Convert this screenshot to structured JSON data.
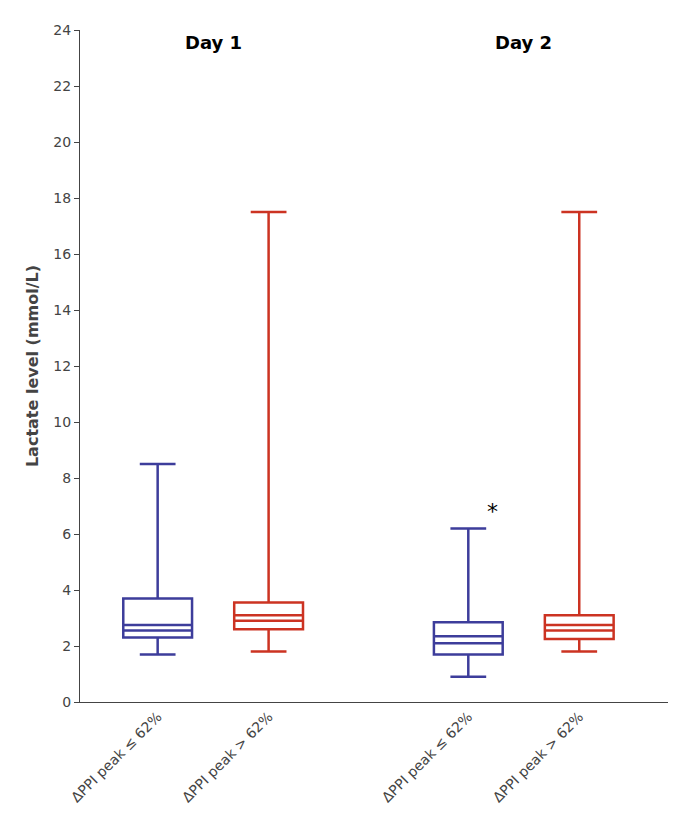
{
  "chart_data": {
    "type": "box",
    "ylabel": "Lactate level (mmol/L)",
    "ylim": [
      0,
      24
    ],
    "yticks": [
      0,
      2,
      4,
      6,
      8,
      10,
      12,
      14,
      16,
      18,
      20,
      22,
      24
    ],
    "grid": false,
    "groups": [
      {
        "label": "Day 1",
        "boxes": [
          {
            "label": "ΔPPI peak ≤ 62%",
            "color": "#3d3d9b",
            "whisker_low": 1.7,
            "q1": 2.3,
            "median": 2.75,
            "median2": 2.55,
            "q3": 3.7,
            "whisker_high": 8.5
          },
          {
            "label": "ΔPPI peak > 62%",
            "color": "#cc3322",
            "whisker_low": 1.8,
            "q1": 2.6,
            "median": 3.1,
            "median2": 2.9,
            "q3": 3.55,
            "whisker_high": 17.5
          }
        ]
      },
      {
        "label": "Day 2",
        "boxes": [
          {
            "label": "ΔPPI peak ≤ 62%",
            "color": "#3d3d9b",
            "whisker_low": 0.9,
            "q1": 1.7,
            "median": 2.35,
            "median2": 2.1,
            "q3": 2.85,
            "whisker_high": 6.2,
            "annotation": "*"
          },
          {
            "label": "ΔPPI peak > 62%",
            "color": "#cc3322",
            "whisker_low": 1.8,
            "q1": 2.25,
            "median": 2.75,
            "median2": 2.55,
            "q3": 3.1,
            "whisker_high": 17.5
          }
        ]
      }
    ]
  }
}
